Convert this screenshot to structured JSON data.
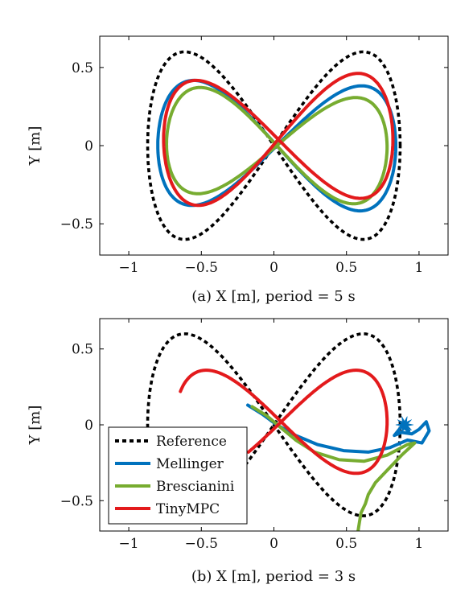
{
  "chart_data": [
    {
      "type": "line",
      "caption": "(a) X [m], period = 5 s",
      "ylabel": "Y [m]",
      "xlim": [
        -1.2,
        1.2
      ],
      "ylim": [
        -0.7,
        0.7
      ],
      "xticks": [
        {
          "v": -1,
          "label": "−1"
        },
        {
          "v": -0.5,
          "label": "−0.5"
        },
        {
          "v": 0,
          "label": "0"
        },
        {
          "v": 0.5,
          "label": "0.5"
        },
        {
          "v": 1,
          "label": "1"
        }
      ],
      "yticks": [
        {
          "v": -0.5,
          "label": "−0.5"
        },
        {
          "v": 0,
          "label": "0"
        },
        {
          "v": 0.5,
          "label": "0.5"
        }
      ],
      "grid": false,
      "series": [
        {
          "name": "Reference",
          "color": "#000000",
          "dash": true,
          "shape": "lemniscate",
          "ax": 0.87,
          "ay": 0.6,
          "dx": 0,
          "dy": 0,
          "rot": 0,
          "tmin": 0,
          "tmax": 1,
          "points": []
        },
        {
          "name": "Mellinger",
          "color": "#0072BD",
          "dash": false,
          "shape": "lemniscate",
          "ax": 0.82,
          "ay": 0.4,
          "dx": 0.02,
          "dy": 0.0,
          "rot": -0.03,
          "tmin": 0,
          "tmax": 1,
          "points": []
        },
        {
          "name": "Brescianini",
          "color": "#77AC30",
          "dash": false,
          "shape": "lemniscate",
          "ax": 0.76,
          "ay": 0.34,
          "dx": 0.02,
          "dy": 0.0,
          "rot": -0.06,
          "tmin": 0,
          "tmax": 1,
          "points": []
        },
        {
          "name": "TinyMPC",
          "color": "#E31A1C",
          "dash": false,
          "shape": "lemniscate",
          "ax": 0.79,
          "ay": 0.4,
          "dx": 0.03,
          "dy": 0.04,
          "rot": 0.04,
          "tmin": 0,
          "tmax": 1,
          "points": []
        }
      ]
    },
    {
      "type": "line",
      "caption": "(b) X [m], period = 3 s",
      "ylabel": "Y [m]",
      "xlim": [
        -1.2,
        1.2
      ],
      "ylim": [
        -0.7,
        0.7
      ],
      "xticks": [
        {
          "v": -1,
          "label": "−1"
        },
        {
          "v": -0.5,
          "label": "−0.5"
        },
        {
          "v": 0,
          "label": "0"
        },
        {
          "v": 0.5,
          "label": "0.5"
        },
        {
          "v": 1,
          "label": "1"
        }
      ],
      "yticks": [
        {
          "v": -0.5,
          "label": "−0.5"
        },
        {
          "v": 0,
          "label": "0"
        },
        {
          "v": 0.5,
          "label": "0.5"
        }
      ],
      "grid": false,
      "legend_position": "bottom-left",
      "series": [
        {
          "name": "Reference",
          "color": "#000000",
          "dash": true,
          "shape": "lemniscate",
          "ax": 0.87,
          "ay": 0.6,
          "dx": 0,
          "dy": 0,
          "rot": 0,
          "tmin": 0,
          "tmax": 1,
          "points": []
        },
        {
          "name": "Mellinger",
          "color": "#0072BD",
          "dash": false,
          "shape": "path",
          "points": [
            [
              -0.18,
              0.13
            ],
            [
              -0.08,
              0.07
            ],
            [
              0.02,
              0.0
            ],
            [
              0.15,
              -0.07
            ],
            [
              0.3,
              -0.13
            ],
            [
              0.48,
              -0.17
            ],
            [
              0.65,
              -0.18
            ],
            [
              0.8,
              -0.15
            ],
            [
              0.92,
              -0.1
            ],
            [
              1.02,
              -0.12
            ],
            [
              1.07,
              -0.04
            ],
            [
              1.05,
              0.02
            ],
            [
              1.0,
              -0.03
            ],
            [
              0.95,
              -0.06
            ],
            [
              0.88,
              -0.05
            ],
            [
              0.83,
              -0.07
            ],
            [
              0.88,
              -0.01
            ],
            [
              0.93,
              -0.04
            ]
          ]
        },
        {
          "name": "Brescianini",
          "color": "#77AC30",
          "dash": false,
          "shape": "path",
          "points": [
            [
              -0.15,
              0.12
            ],
            [
              -0.05,
              0.06
            ],
            [
              0.05,
              -0.02
            ],
            [
              0.15,
              -0.1
            ],
            [
              0.28,
              -0.18
            ],
            [
              0.45,
              -0.23
            ],
            [
              0.62,
              -0.24
            ],
            [
              0.78,
              -0.2
            ],
            [
              0.92,
              -0.13
            ],
            [
              0.97,
              -0.12
            ],
            [
              0.88,
              -0.2
            ],
            [
              0.78,
              -0.3
            ],
            [
              0.7,
              -0.38
            ],
            [
              0.65,
              -0.46
            ],
            [
              0.63,
              -0.52
            ],
            [
              0.6,
              -0.58
            ],
            [
              0.59,
              -0.64
            ],
            [
              0.58,
              -0.7
            ]
          ]
        },
        {
          "name": "TinyMPC",
          "color": "#E31A1C",
          "dash": false,
          "shape": "lemniscate",
          "ax": 0.73,
          "ay": 0.34,
          "dx": 0.05,
          "dy": 0.02,
          "rot": 0.0,
          "tmin": 0.55,
          "tmax": 1.3,
          "points": []
        }
      ]
    }
  ]
}
